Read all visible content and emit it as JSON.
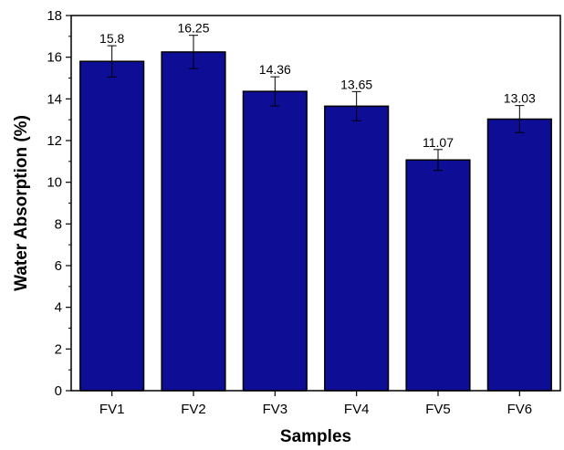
{
  "chart_data": {
    "type": "bar",
    "title": "",
    "xlabel": "Samples",
    "ylabel": "Water Absorption (%)",
    "categories": [
      "FV1",
      "FV2",
      "FV3",
      "FV4",
      "FV5",
      "FV6"
    ],
    "values": [
      15.8,
      16.25,
      14.36,
      13.65,
      11.07,
      13.03
    ],
    "value_labels": [
      "15.8",
      "16.25",
      "14.36",
      "13.65",
      "11.07",
      "13.03"
    ],
    "error": [
      0.75,
      0.8,
      0.7,
      0.7,
      0.5,
      0.65
    ],
    "ylim": [
      0,
      18
    ],
    "yticks": [
      "0",
      "2",
      "4",
      "6",
      "8",
      "10",
      "12",
      "14",
      "16",
      "18"
    ],
    "grid": false,
    "legend": "none",
    "colors": {
      "bar": "#0d0d96",
      "edge": "#000000",
      "axis": "#000000"
    }
  }
}
